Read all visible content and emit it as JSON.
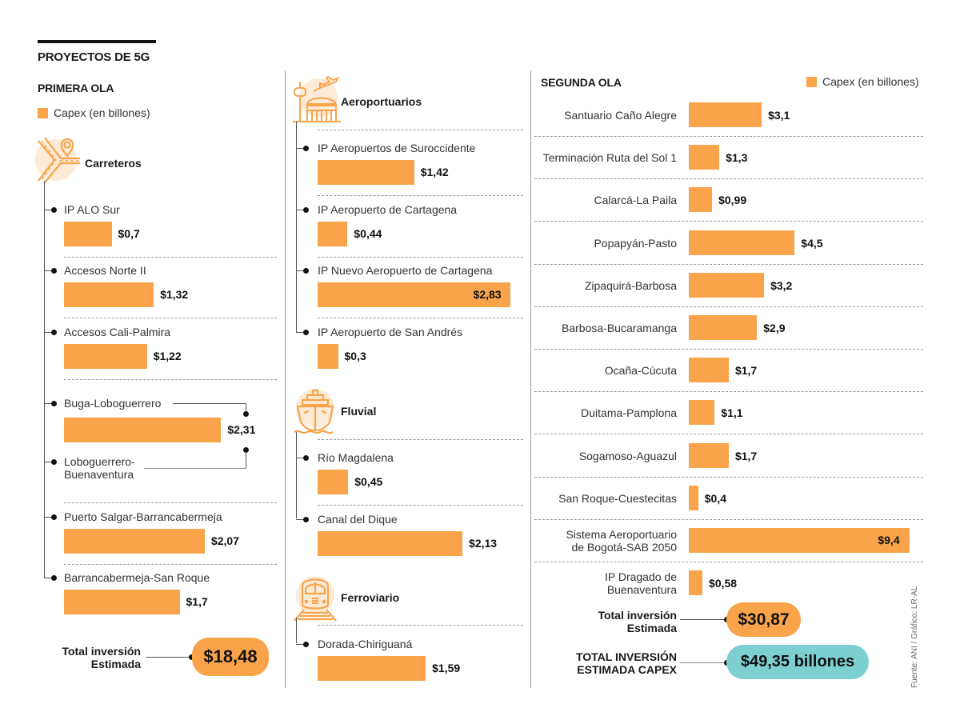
{
  "title": "PROYECTOS DE 5G",
  "legend_label": "Capex (en billones)",
  "colors": {
    "bar": "#f9a44a",
    "total_pill": "#f9a44a",
    "grand_total_pill": "#7dcfd1",
    "icon_bg": "#fdebd8"
  },
  "source": "Fuente: ANI / Gráfico: LR-AL",
  "primera_ola": {
    "title": "PRIMERA OLA",
    "total_label_1": "Total inversión",
    "total_label_2": "Estimada",
    "total_value": "$18,48"
  },
  "segunda_ola": {
    "title": "SEGUNDA OLA",
    "total_label_1": "Total inversión",
    "total_label_2": "Estimada",
    "total_value": "$30,87"
  },
  "grand_total": {
    "label_1": "TOTAL INVERSIÓN",
    "label_2": "ESTIMADA CAPEX",
    "value": "$49,35 billones"
  },
  "chart_data": [
    {
      "type": "bar",
      "title": "Primera ola - Carreteros",
      "xlabel": "Capex (en billones)",
      "categories": [
        "IP ALO Sur",
        "Accesos Norte II",
        "Accesos Cali-Palmira",
        "Buga-Loboguerrero + Loboguerrero-Buenaventura",
        "Puerto Salgar-Barrancabermeja",
        "Barrancabermeja-San Roque"
      ],
      "values": [
        0.7,
        1.32,
        1.22,
        2.31,
        2.07,
        1.7
      ],
      "value_labels": [
        "$0,7",
        "$1,32",
        "$1,22",
        "$2,31",
        "$2,07",
        "$1,7"
      ],
      "items": [
        {
          "label": "IP ALO Sur",
          "value": 0.7,
          "value_label": "$0,7"
        },
        {
          "label": "Accesos Norte II",
          "value": 1.32,
          "value_label": "$1,32"
        },
        {
          "label": "Accesos Cali-Palmira",
          "value": 1.22,
          "value_label": "$1,22"
        },
        {
          "label": "Buga-Loboguerrero",
          "label_b1": "Loboguerrero-",
          "label_b2": "Buenaventura",
          "value": 2.31,
          "value_label": "$2,31"
        },
        {
          "label": "Puerto Salgar-Barrancabermeja",
          "value": 2.07,
          "value_label": "$2,07"
        },
        {
          "label": "Barrancabermeja-San Roque",
          "value": 1.7,
          "value_label": "$1,7"
        }
      ],
      "section": "Carreteros"
    },
    {
      "type": "bar",
      "title": "Primera ola - Aeroportuarios",
      "section": "Aeroportuarios",
      "categories": [
        "IP Aeropuertos de Suroccidente",
        "IP Aeropuerto de Cartagena",
        "IP Nuevo Aeropuerto de Cartagena",
        "IP Aeropuerto de San Andrés"
      ],
      "values": [
        1.42,
        0.44,
        2.83,
        0.3
      ],
      "items": [
        {
          "label": "IP Aeropuertos de Suroccidente",
          "value": 1.42,
          "value_label": "$1,42"
        },
        {
          "label": "IP Aeropuerto de Cartagena",
          "value": 0.44,
          "value_label": "$0,44"
        },
        {
          "label": "IP Nuevo Aeropuerto de Cartagena",
          "value": 2.83,
          "value_label": "$2,83"
        },
        {
          "label": "IP Aeropuerto de San Andrés",
          "value": 0.3,
          "value_label": "$0,3"
        }
      ]
    },
    {
      "type": "bar",
      "title": "Primera ola - Fluvial",
      "section": "Fluvial",
      "categories": [
        "Río Magdalena",
        "Canal del Dique"
      ],
      "values": [
        0.45,
        2.13
      ],
      "items": [
        {
          "label": "Río Magdalena",
          "value": 0.45,
          "value_label": "$0,45"
        },
        {
          "label": "Canal del Dique",
          "value": 2.13,
          "value_label": "$2,13"
        }
      ]
    },
    {
      "type": "bar",
      "title": "Primera ola - Ferroviario",
      "section": "Ferroviario",
      "categories": [
        "Dorada-Chiriguaná"
      ],
      "values": [
        1.59
      ],
      "items": [
        {
          "label": "Dorada-Chiriguaná",
          "value": 1.59,
          "value_label": "$1,59"
        }
      ]
    },
    {
      "type": "bar",
      "title": "Segunda ola",
      "xlabel": "Capex (en billones)",
      "categories": [
        "Santuario Caño Alegre",
        "Terminación Ruta del Sol 1",
        "Calarcá-La Paila",
        "Popapyán-Pasto",
        "Zipaquirá-Barbosa",
        "Barbosa-Bucaramanga",
        "Ocaña-Cúcuta",
        "Duitama-Pamplona",
        "Sogamoso-Aguazul",
        "San Roque-Cuestecitas",
        "Sistema Aeroportuario de Bogotá-SAB 2050",
        "IP Dragado de Buenaventura"
      ],
      "values": [
        3.1,
        1.3,
        0.99,
        4.5,
        3.2,
        2.9,
        1.7,
        1.1,
        1.7,
        0.4,
        9.4,
        0.58
      ],
      "items": [
        {
          "label": "Santuario Caño Alegre",
          "value": 3.1,
          "value_label": "$3,1"
        },
        {
          "label": "Terminación Ruta del Sol 1",
          "value": 1.3,
          "value_label": "$1,3"
        },
        {
          "label": "Calarcá-La Paila",
          "value": 0.99,
          "value_label": "$0,99"
        },
        {
          "label": "Popapyán-Pasto",
          "value": 4.5,
          "value_label": "$4,5"
        },
        {
          "label": "Zipaquirá-Barbosa",
          "value": 3.2,
          "value_label": "$3,2"
        },
        {
          "label": "Barbosa-Bucaramanga",
          "value": 2.9,
          "value_label": "$2,9"
        },
        {
          "label": "Ocaña-Cúcuta",
          "value": 1.7,
          "value_label": "$1,7"
        },
        {
          "label": "Duitama-Pamplona",
          "value": 1.1,
          "value_label": "$1,1"
        },
        {
          "label": "Sogamoso-Aguazul",
          "value": 1.7,
          "value_label": "$1,7"
        },
        {
          "label": "San Roque-Cuestecitas",
          "value": 0.4,
          "value_label": "$0,4"
        },
        {
          "label": "Sistema Aeroportuario",
          "label_2": "de Bogotá-SAB 2050",
          "value": 9.4,
          "value_label": "$9,4"
        },
        {
          "label": "IP Dragado de",
          "label_2": "Buenaventura",
          "value": 0.58,
          "value_label": "$0,58"
        }
      ]
    }
  ]
}
